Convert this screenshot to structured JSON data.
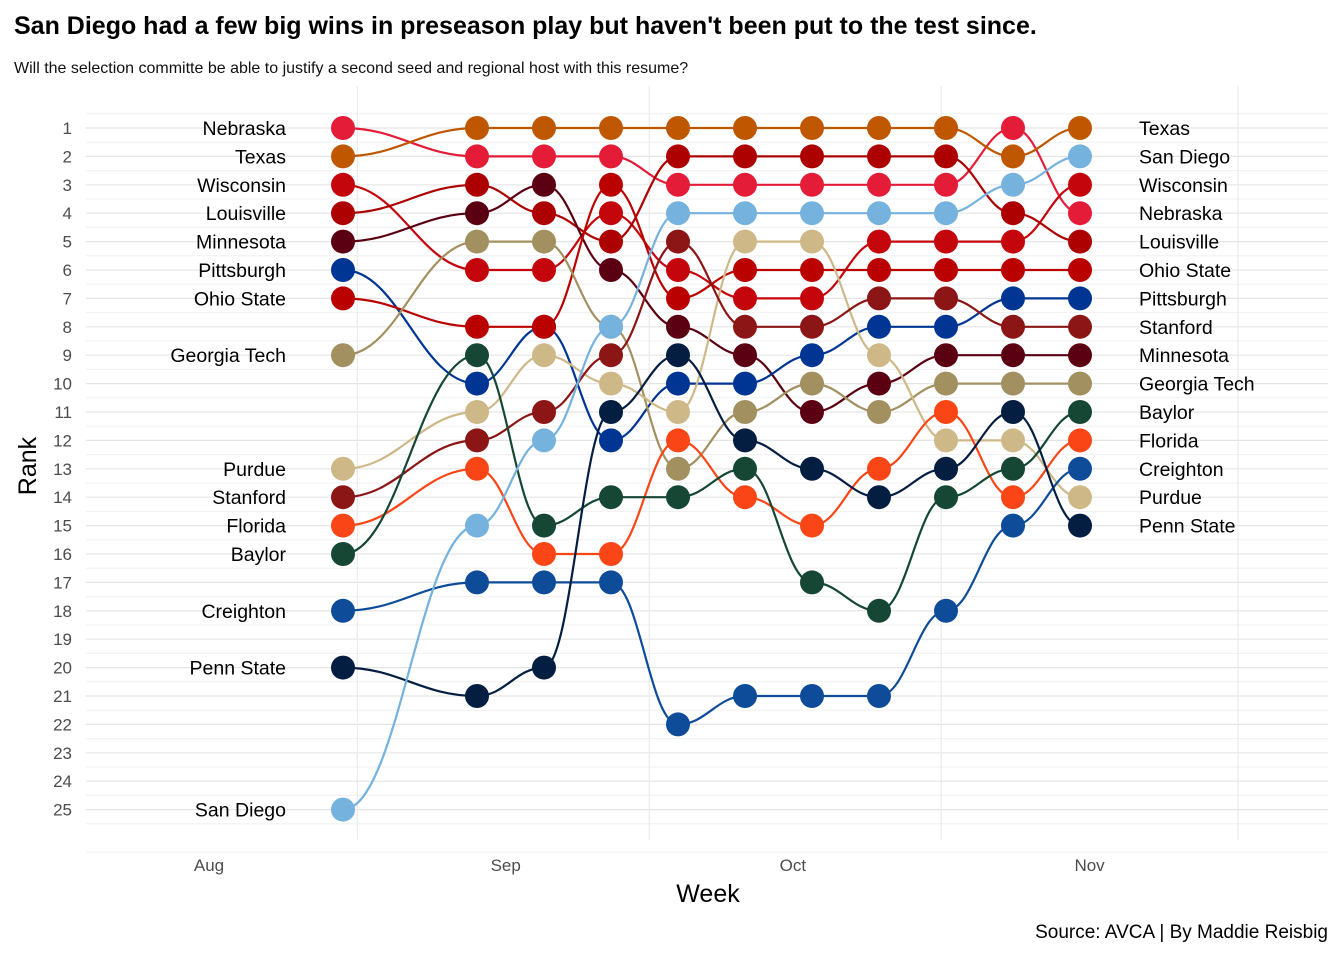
{
  "title": "San Diego had a few big wins in preseason play but haven't been put to the test since.",
  "subtitle": "Will the selection committe be able to justify a second seed and regional host with this resume?",
  "caption": "Source: AVCA | By Maddie Reisbig",
  "chart_data": {
    "type": "line",
    "xlabel": "Week",
    "ylabel": "Rank",
    "x_tick_labels": [
      {
        "label": "Aug",
        "date": "2022-08-01"
      },
      {
        "label": "Sep",
        "date": "2022-09-01"
      },
      {
        "label": "Oct",
        "date": "2022-10-01"
      },
      {
        "label": "Nov",
        "date": "2022-11-01"
      }
    ],
    "y_ticks": [
      1,
      2,
      3,
      4,
      5,
      6,
      7,
      8,
      9,
      10,
      11,
      12,
      13,
      14,
      15,
      16,
      17,
      18,
      19,
      20,
      21,
      22,
      23,
      24,
      25
    ],
    "weeks": [
      "2022-08-15",
      "2022-08-29",
      "2022-09-05",
      "2022-09-12",
      "2022-09-19",
      "2022-09-26",
      "2022-10-03",
      "2022-10-10",
      "2022-10-17",
      "2022-10-24",
      "2022-10-31"
    ],
    "series": [
      {
        "name": "Nebraska",
        "color": "#E41C38",
        "ranks": [
          1,
          2,
          2,
          2,
          3,
          3,
          3,
          3,
          3,
          1,
          4
        ]
      },
      {
        "name": "Texas",
        "color": "#BF5700",
        "ranks": [
          2,
          1,
          1,
          1,
          1,
          1,
          1,
          1,
          1,
          2,
          1
        ]
      },
      {
        "name": "Wisconsin",
        "color": "#C5050C",
        "ranks": [
          3,
          6,
          6,
          4,
          6,
          7,
          7,
          5,
          5,
          5,
          3
        ]
      },
      {
        "name": "Louisville",
        "color": "#AD0000",
        "ranks": [
          4,
          3,
          4,
          5,
          2,
          2,
          2,
          2,
          2,
          4,
          5
        ]
      },
      {
        "name": "Minnesota",
        "color": "#5B0013",
        "ranks": [
          5,
          4,
          3,
          6,
          8,
          9,
          11,
          10,
          9,
          9,
          9
        ]
      },
      {
        "name": "Pittsburgh",
        "color": "#003594",
        "ranks": [
          6,
          10,
          8,
          12,
          10,
          10,
          9,
          8,
          8,
          7,
          7
        ]
      },
      {
        "name": "Ohio State",
        "color": "#BB0000",
        "ranks": [
          7,
          8,
          8,
          3,
          7,
          6,
          6,
          6,
          6,
          6,
          6
        ]
      },
      {
        "name": "Georgia Tech",
        "color": "#A29061",
        "ranks": [
          9,
          5,
          5,
          8,
          13,
          11,
          10,
          11,
          10,
          10,
          10
        ]
      },
      {
        "name": "Purdue",
        "color": "#CEB888",
        "ranks": [
          13,
          11,
          9,
          10,
          11,
          5,
          5,
          9,
          12,
          12,
          14
        ]
      },
      {
        "name": "Stanford",
        "color": "#8C1515",
        "ranks": [
          14,
          12,
          11,
          9,
          5,
          8,
          8,
          7,
          7,
          8,
          8
        ]
      },
      {
        "name": "Florida",
        "color": "#FA4616",
        "ranks": [
          15,
          13,
          16,
          16,
          12,
          14,
          15,
          13,
          11,
          14,
          12
        ]
      },
      {
        "name": "Baylor",
        "color": "#154734",
        "ranks": [
          16,
          9,
          15,
          14,
          14,
          13,
          17,
          18,
          14,
          13,
          11
        ]
      },
      {
        "name": "Creighton",
        "color": "#0E4C9A",
        "ranks": [
          18,
          17,
          17,
          17,
          22,
          21,
          21,
          21,
          18,
          15,
          13
        ]
      },
      {
        "name": "Penn State",
        "color": "#041E42",
        "ranks": [
          20,
          21,
          20,
          11,
          9,
          12,
          13,
          14,
          13,
          11,
          15
        ]
      },
      {
        "name": "San Diego",
        "color": "#75B2DD",
        "ranks": [
          25,
          15,
          12,
          8,
          4,
          4,
          4,
          4,
          4,
          3,
          2
        ]
      }
    ]
  }
}
